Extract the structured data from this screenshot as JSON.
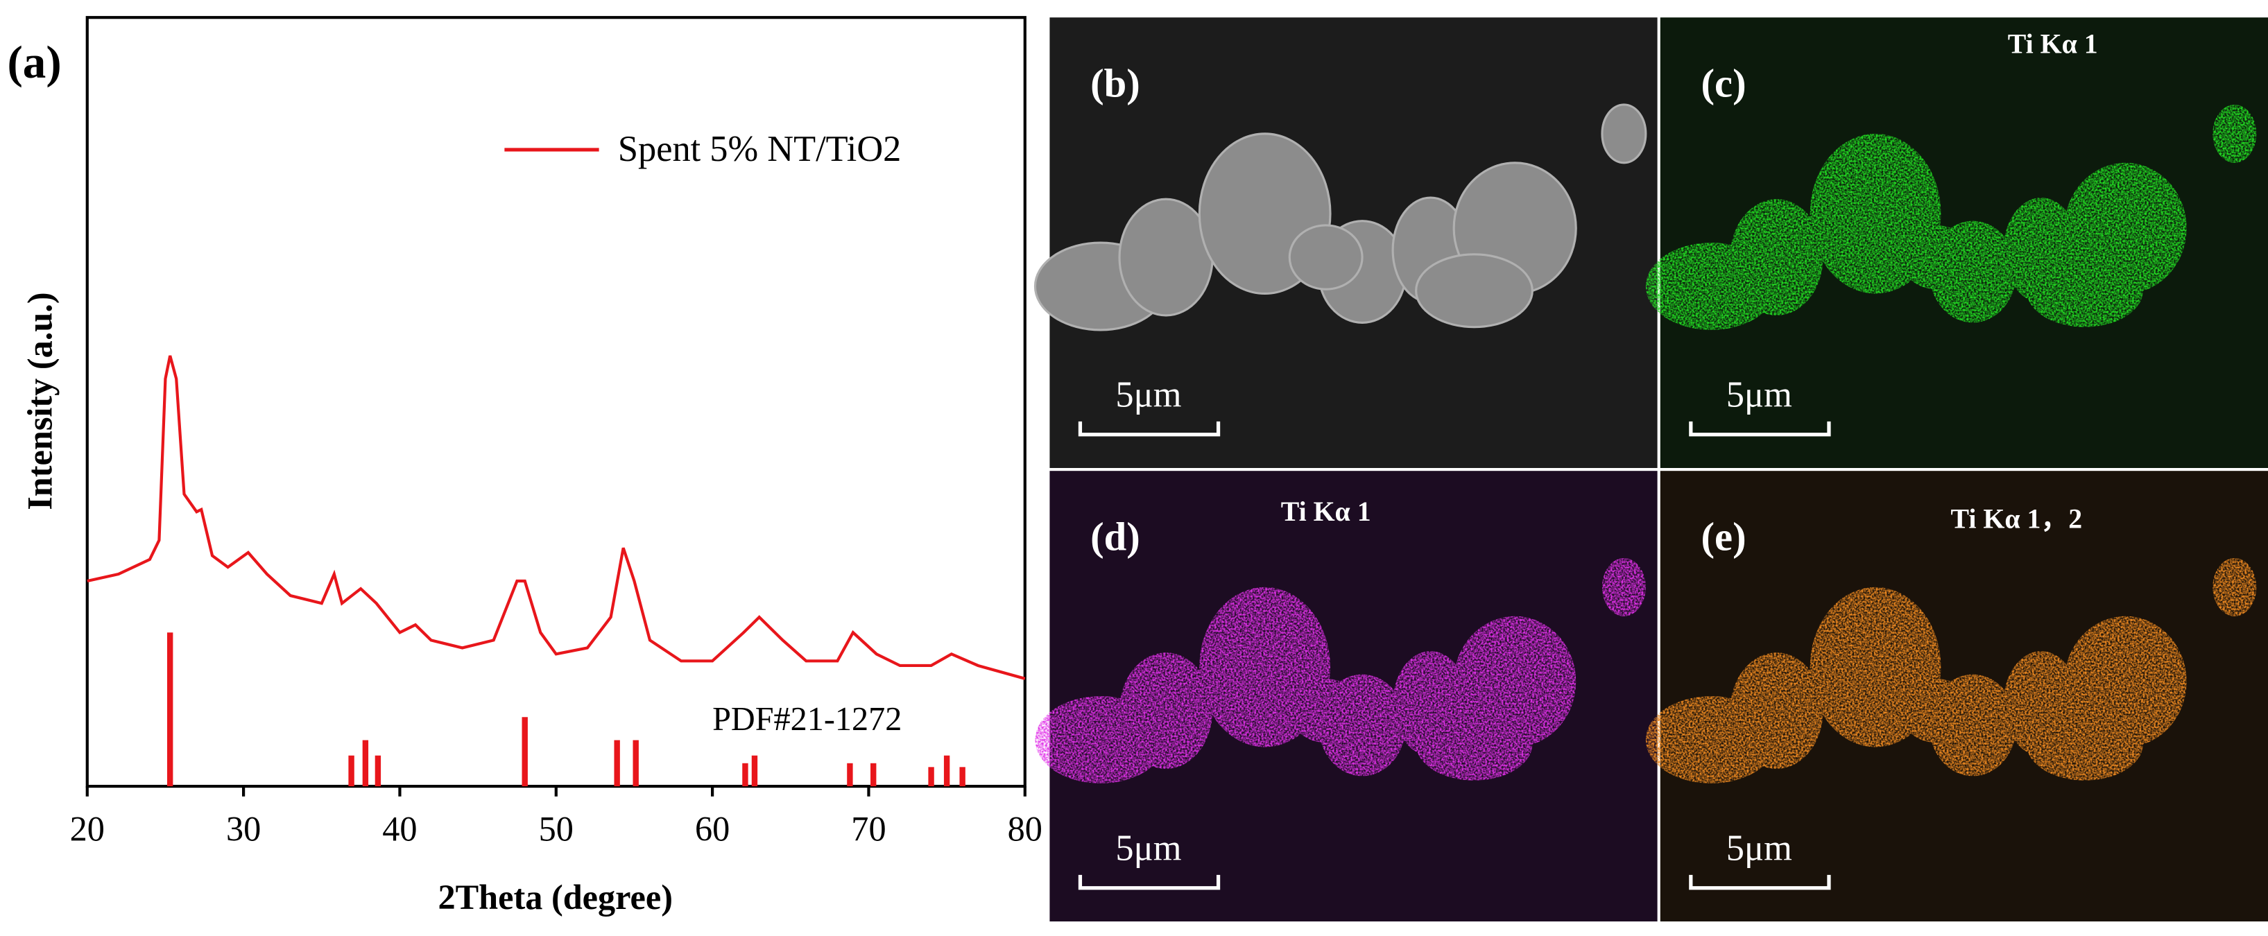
{
  "chart_data": {
    "type": "line",
    "panel_label": "(a)",
    "xlabel": "2Theta (degree)",
    "ylabel": "Intensity (a.u.)",
    "xlim": [
      20,
      80
    ],
    "xticks": [
      20,
      30,
      40,
      50,
      60,
      70,
      80
    ],
    "ylim": [
      0,
      100
    ],
    "series": [
      {
        "name": "Spent 5% NT/TiO2",
        "color": "#e8161b",
        "x": [
          20,
          22,
          24,
          24.6,
          25,
          25.3,
          25.7,
          26.2,
          27,
          27.3,
          28,
          29,
          30.3,
          31.5,
          33,
          35,
          35.8,
          36.3,
          37.5,
          38.5,
          40,
          41,
          42,
          44,
          46,
          47.5,
          48,
          49,
          50,
          52,
          53.5,
          54.3,
          55,
          56,
          58,
          60,
          62,
          63,
          64.5,
          66,
          68,
          69,
          70.5,
          72,
          74,
          75.3,
          77,
          80
        ],
        "values": [
          26.7,
          27.6,
          29.5,
          32,
          53,
          56,
          53,
          38,
          35.7,
          36,
          30,
          28.5,
          30.4,
          27.6,
          24.8,
          23.8,
          27.6,
          23.8,
          25.7,
          23.8,
          20,
          21,
          19,
          18,
          19,
          26.7,
          26.7,
          20,
          17.2,
          18,
          22,
          31,
          26.7,
          19,
          16.3,
          16.3,
          20,
          22,
          19,
          16.3,
          16.3,
          20,
          17.2,
          15.7,
          15.7,
          17.2,
          15.7,
          14
        ]
      },
      {
        "name": "PDF#21-1272",
        "color": "#e8161b",
        "type": "stick",
        "x": [
          25.3,
          36.9,
          37.8,
          38.6,
          48.0,
          53.9,
          55.1,
          62.1,
          62.7,
          68.8,
          70.3,
          74.0,
          75.0,
          76.0
        ],
        "values": [
          20,
          4,
          6,
          4,
          9,
          6,
          6,
          3,
          4,
          3,
          3,
          2.5,
          4,
          2.5
        ]
      }
    ]
  },
  "panels": [
    {
      "label": "(b)",
      "scale_bar": "5μm"
    },
    {
      "label": "(c)",
      "element": "Ti Kα 1",
      "scale_bar": "5μm"
    },
    {
      "label": "(d)",
      "element": "Ti Kα 1",
      "scale_bar": "5μm"
    },
    {
      "label": "(e)",
      "element": "Ti Kα 1，2",
      "scale_bar": "5μm"
    }
  ]
}
